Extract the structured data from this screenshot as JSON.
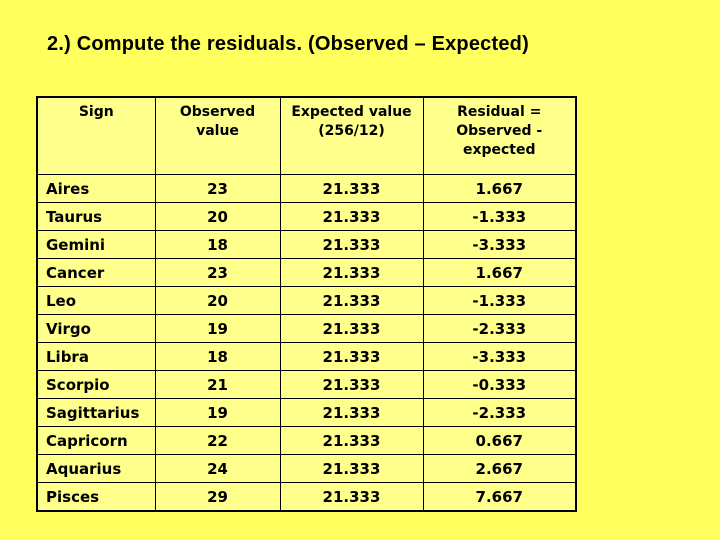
{
  "slide": {
    "title": "2.) Compute the residuals. (Observed – Expected)",
    "background_color": "#FFFF5E",
    "cell_color": "#FFFF8C",
    "border_color": "#000000",
    "text_color": "#000000"
  },
  "table": {
    "headers": [
      {
        "label": "Sign",
        "lines": [
          "Sign"
        ]
      },
      {
        "label": "Observed value",
        "lines": [
          "Observed",
          "value"
        ]
      },
      {
        "label": "Expected value (256/12)",
        "lines": [
          "Expected value",
          "(256/12)"
        ]
      },
      {
        "label": "Residual = Observed - expected",
        "lines": [
          "Residual =",
          "Observed -",
          "expected"
        ]
      }
    ],
    "rows": [
      {
        "sign": "Aires",
        "observed": "23",
        "expected": "21.333",
        "residual": "1.667"
      },
      {
        "sign": "Taurus",
        "observed": "20",
        "expected": "21.333",
        "residual": "-1.333"
      },
      {
        "sign": "Gemini",
        "observed": "18",
        "expected": "21.333",
        "residual": "-3.333"
      },
      {
        "sign": "Cancer",
        "observed": "23",
        "expected": "21.333",
        "residual": "1.667"
      },
      {
        "sign": "Leo",
        "observed": "20",
        "expected": "21.333",
        "residual": "-1.333"
      },
      {
        "sign": "Virgo",
        "observed": "19",
        "expected": "21.333",
        "residual": "-2.333"
      },
      {
        "sign": "Libra",
        "observed": "18",
        "expected": "21.333",
        "residual": "-3.333"
      },
      {
        "sign": "Scorpio",
        "observed": "21",
        "expected": "21.333",
        "residual": "-0.333"
      },
      {
        "sign": "Sagittarius",
        "observed": "19",
        "expected": "21.333",
        "residual": "-2.333"
      },
      {
        "sign": "Capricorn",
        "observed": "22",
        "expected": "21.333",
        "residual": "0.667"
      },
      {
        "sign": "Aquarius",
        "observed": "24",
        "expected": "21.333",
        "residual": "2.667"
      },
      {
        "sign": "Pisces",
        "observed": "29",
        "expected": "21.333",
        "residual": "7.667"
      }
    ]
  }
}
